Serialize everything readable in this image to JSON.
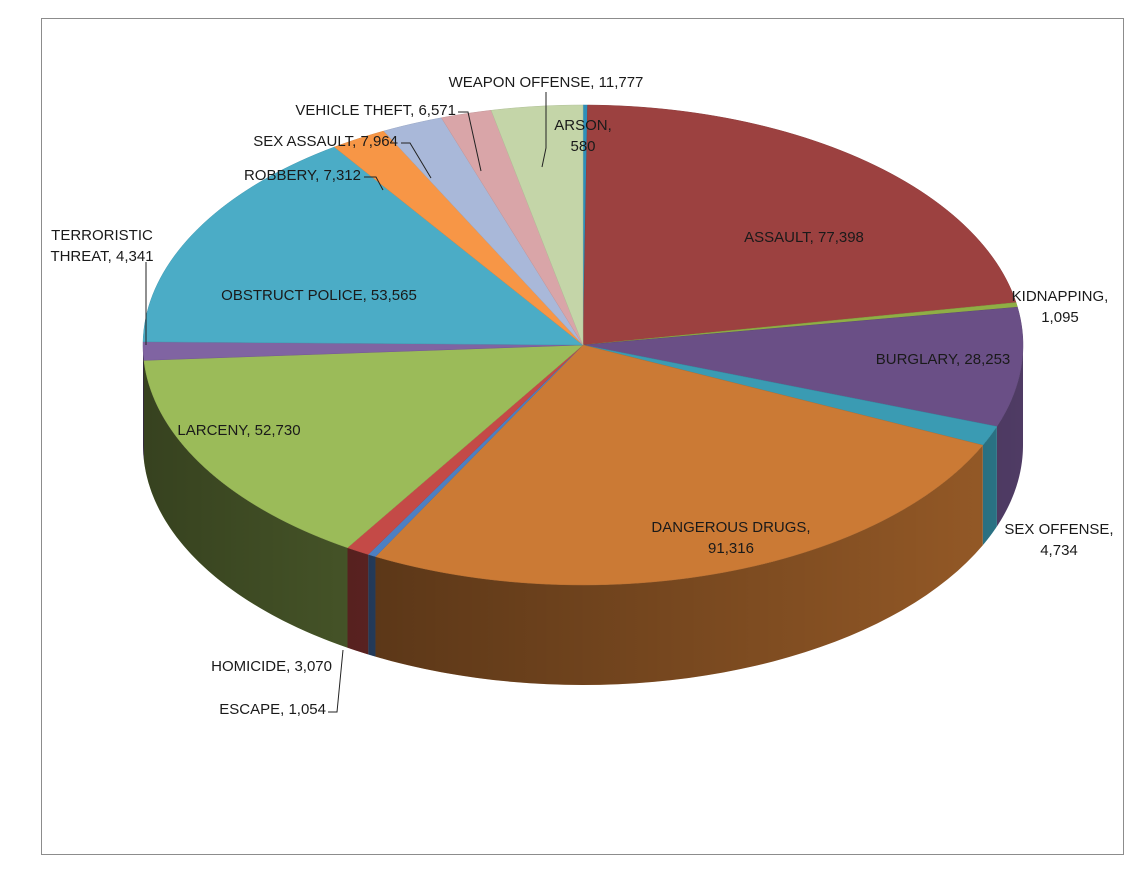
{
  "chart_data": {
    "type": "pie",
    "style": "3d",
    "title": "",
    "legend": "none",
    "slices": [
      {
        "label": "ARSON",
        "value": 580,
        "color": "#2e8fba"
      },
      {
        "label": "ASSAULT",
        "value": 77398,
        "color": "#9c4140"
      },
      {
        "label": "KIDNAPPING",
        "value": 1095,
        "color": "#8fae45"
      },
      {
        "label": "BURGLARY",
        "value": 28253,
        "color": "#6a4f86"
      },
      {
        "label": "SEX OFFENSE",
        "value": 4734,
        "color": "#3a9bb3"
      },
      {
        "label": "DANGEROUS DRUGS",
        "value": 91316,
        "color": "#cb7a35"
      },
      {
        "label": "ESCAPE",
        "value": 1054,
        "color": "#4d7fc2"
      },
      {
        "label": "HOMICIDE",
        "value": 3070,
        "color": "#c44a47"
      },
      {
        "label": "LARCENY",
        "value": 52730,
        "color": "#9bbb59"
      },
      {
        "label": "TERRORISTIC THREAT",
        "value": 4341,
        "color": "#8064a2"
      },
      {
        "label": "OBSTRUCT POLICE",
        "value": 53565,
        "color": "#4bacc6"
      },
      {
        "label": "ROBBERY",
        "value": 7312,
        "color": "#f79646"
      },
      {
        "label": "SEX ASSAULT",
        "value": 7964,
        "color": "#a9b8d9"
      },
      {
        "label": "VEHICLE THEFT",
        "value": 6571,
        "color": "#d9a5a8"
      },
      {
        "label": "WEAPON OFFENSE",
        "value": 11777,
        "color": "#c4d5a8"
      }
    ],
    "data_labels": [
      {
        "lines": [
          "ARSON,",
          "580"
        ],
        "line": false
      },
      {
        "lines": [
          "ASSAULT, 77,398"
        ],
        "line": false
      },
      {
        "lines": [
          "KIDNAPPING,",
          "1,095"
        ],
        "line": false
      },
      {
        "lines": [
          "BURGLARY, 28,253"
        ],
        "line": false
      },
      {
        "lines": [
          "SEX OFFENSE,",
          "4,734"
        ],
        "line": false
      },
      {
        "lines": [
          "DANGEROUS DRUGS,",
          "91,316"
        ],
        "line": false
      },
      {
        "lines": [
          "ESCAPE, 1,054"
        ],
        "line": true
      },
      {
        "lines": [
          "HOMICIDE, 3,070"
        ],
        "line": false
      },
      {
        "lines": [
          "LARCENY, 52,730"
        ],
        "line": false
      },
      {
        "lines": [
          "TERRORISTIC",
          "THREAT, 4,341"
        ],
        "line": true
      },
      {
        "lines": [
          "OBSTRUCT POLICE, 53,565"
        ],
        "line": false
      },
      {
        "lines": [
          "ROBBERY, 7,312"
        ],
        "line": true
      },
      {
        "lines": [
          "SEX ASSAULT, 7,964"
        ],
        "line": true
      },
      {
        "lines": [
          "VEHICLE THEFT, 6,571"
        ],
        "line": true
      },
      {
        "lines": [
          "WEAPON OFFENSE, 11,777"
        ],
        "line": true
      }
    ]
  }
}
